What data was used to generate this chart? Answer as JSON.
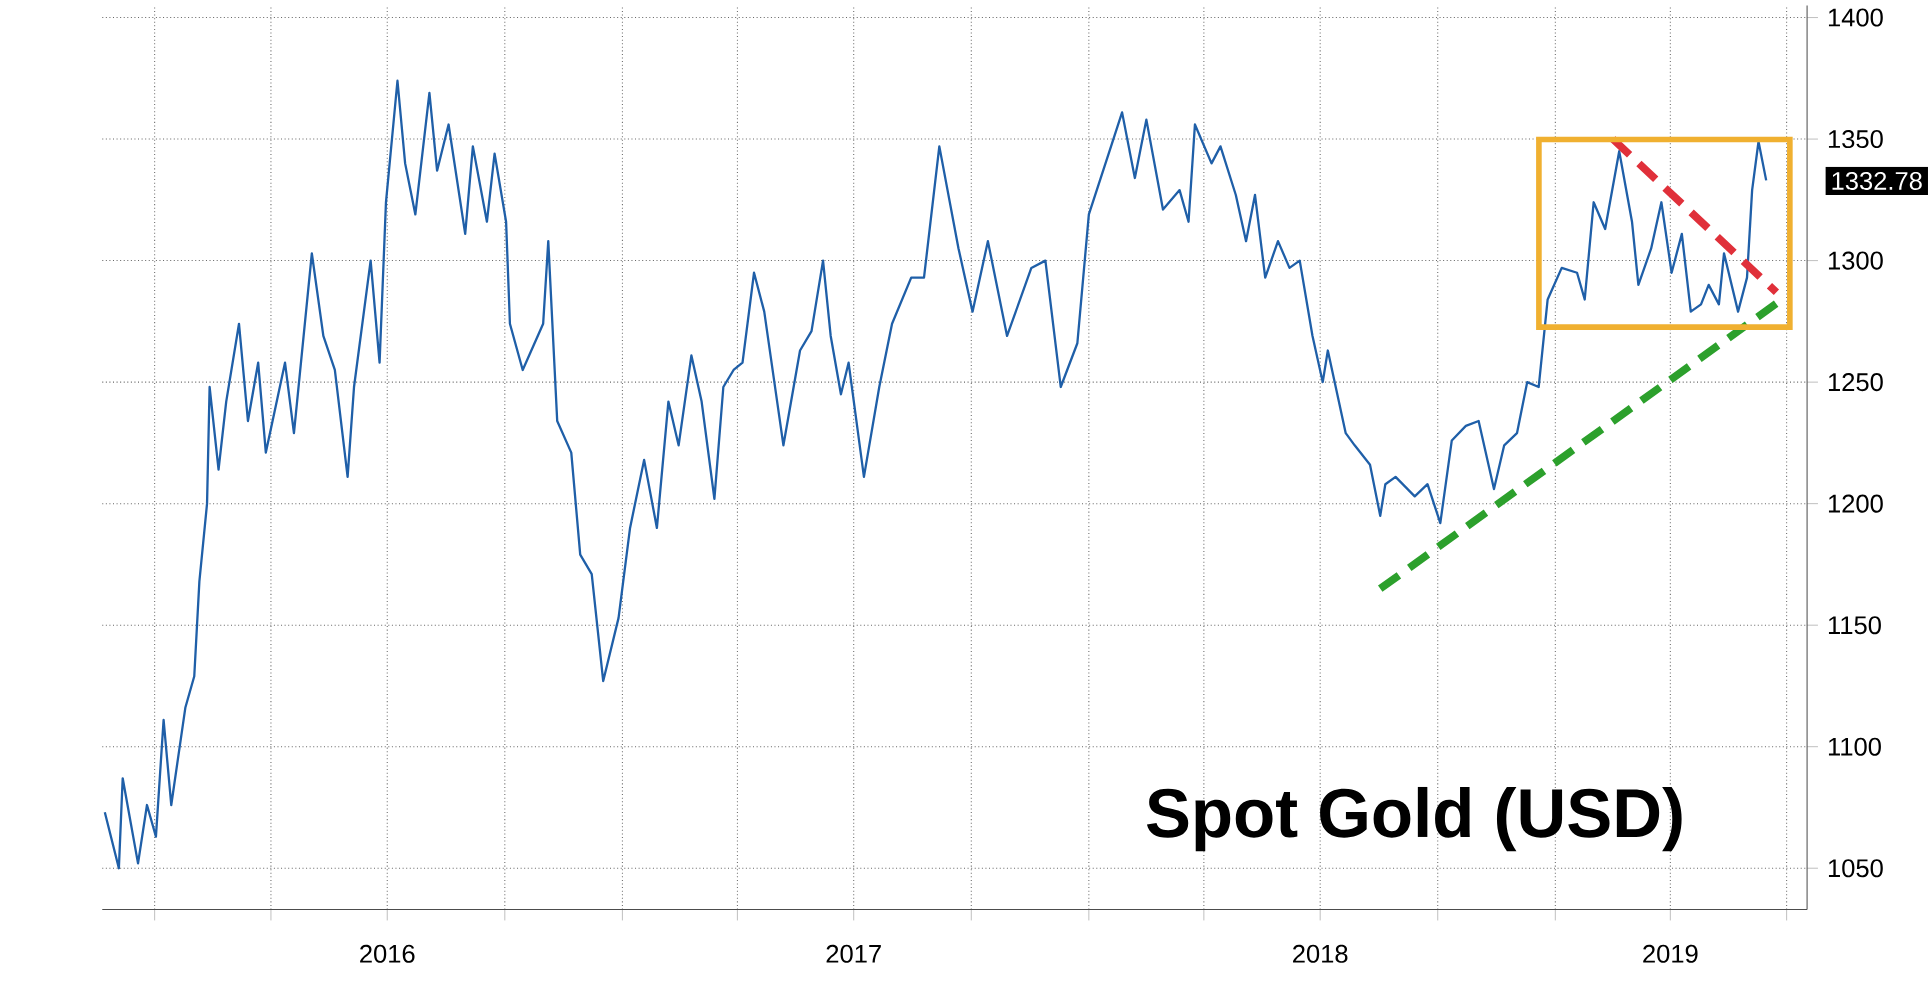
{
  "chart_data": {
    "type": "line",
    "title": "Spot Gold (USD)",
    "xlim": [
      "2015-11-21",
      "2019-07-17"
    ],
    "ylim": [
      1033,
      1405
    ],
    "xticks": [
      {
        "value": "2016-01-01",
        "label": null
      },
      {
        "value": "2016-04-01",
        "label": null
      },
      {
        "value": "2016-07-01",
        "label": "2016"
      },
      {
        "value": "2016-10-01",
        "label": null
      },
      {
        "value": "2017-01-01",
        "label": null
      },
      {
        "value": "2017-04-01",
        "label": null
      },
      {
        "value": "2017-07-01",
        "label": "2017"
      },
      {
        "value": "2017-10-01",
        "label": null
      },
      {
        "value": "2018-01-01",
        "label": null
      },
      {
        "value": "2018-04-01",
        "label": null
      },
      {
        "value": "2018-07-01",
        "label": "2018"
      },
      {
        "value": "2018-10-01",
        "label": null
      },
      {
        "value": "2019-01-01",
        "label": null
      },
      {
        "value": "2019-04-01",
        "label": "2019"
      },
      {
        "value": "2019-07-01",
        "label": null
      }
    ],
    "yticks": [
      1050,
      1100,
      1150,
      1200,
      1250,
      1300,
      1350,
      1400
    ],
    "grid": true,
    "marker": "none",
    "annotations": [
      {
        "text": "1332.78",
        "x": "2019-06-15",
        "y": 1332.78
      }
    ],
    "series": [
      {
        "color": "#1f5fa8",
        "line_style": "solid",
        "x": [
          "2015-11-23",
          "2015-12-04",
          "2015-12-07",
          "2015-12-19",
          "2015-12-26",
          "2016-01-02",
          "2016-01-08",
          "2016-01-14",
          "2016-01-25",
          "2016-02-01",
          "2016-02-05",
          "2016-02-11",
          "2016-02-13",
          "2016-02-20",
          "2016-02-26",
          "2016-03-07",
          "2016-03-14",
          "2016-03-22",
          "2016-03-28",
          "2016-04-12",
          "2016-04-19",
          "2016-05-03",
          "2016-05-12",
          "2016-05-21",
          "2016-05-31",
          "2016-06-05",
          "2016-06-18",
          "2016-06-25",
          "2016-06-30",
          "2016-07-09",
          "2016-07-15",
          "2016-07-23",
          "2016-08-03",
          "2016-08-09",
          "2016-08-18",
          "2016-08-31",
          "2016-09-06",
          "2016-09-17",
          "2016-09-23",
          "2016-10-02",
          "2016-10-05",
          "2016-10-15",
          "2016-10-31",
          "2016-11-04",
          "2016-11-11",
          "2016-11-22",
          "2016-11-29",
          "2016-12-08",
          "2016-12-17",
          "2016-12-29",
          "2017-01-07",
          "2017-01-18",
          "2017-01-28",
          "2017-02-06",
          "2017-02-14",
          "2017-02-24",
          "2017-03-04",
          "2017-03-14",
          "2017-03-21",
          "2017-03-29",
          "2017-04-05",
          "2017-04-14",
          "2017-04-22",
          "2017-05-07",
          "2017-05-20",
          "2017-05-29",
          "2017-06-07",
          "2017-06-13",
          "2017-06-21",
          "2017-06-27",
          "2017-07-09",
          "2017-07-21",
          "2017-07-31",
          "2017-08-15",
          "2017-08-25",
          "2017-09-06",
          "2017-09-21",
          "2017-10-02",
          "2017-10-14",
          "2017-10-29",
          "2017-11-17",
          "2017-11-28",
          "2017-12-10",
          "2017-12-23",
          "2018-01-01",
          "2018-01-19",
          "2018-01-27",
          "2018-02-06",
          "2018-02-15",
          "2018-02-28",
          "2018-03-13",
          "2018-03-20",
          "2018-03-25",
          "2018-04-07",
          "2018-04-14",
          "2018-04-26",
          "2018-05-04",
          "2018-05-11",
          "2018-05-19",
          "2018-05-29",
          "2018-06-07",
          "2018-06-15",
          "2018-06-25",
          "2018-07-03",
          "2018-07-07",
          "2018-07-21",
          "2018-07-28",
          "2018-08-09",
          "2018-08-17",
          "2018-08-21",
          "2018-08-29",
          "2018-09-13",
          "2018-09-23",
          "2018-10-03",
          "2018-10-12",
          "2018-10-23",
          "2018-11-02",
          "2018-11-14",
          "2018-11-22",
          "2018-12-02",
          "2018-12-10",
          "2018-12-19",
          "2018-12-26",
          "2019-01-06",
          "2019-01-18",
          "2019-01-24",
          "2019-01-31",
          "2019-02-09",
          "2019-02-20",
          "2019-03-02",
          "2019-03-07",
          "2019-03-17",
          "2019-03-25",
          "2019-04-02",
          "2019-04-10",
          "2019-04-17",
          "2019-04-25",
          "2019-05-01",
          "2019-05-09",
          "2019-05-13",
          "2019-05-24",
          "2019-05-31",
          "2019-06-04",
          "2019-06-09",
          "2019-06-15"
        ],
        "values": [
          1073,
          1050,
          1087,
          1052,
          1076,
          1063,
          1111,
          1076,
          1116,
          1129,
          1168,
          1200,
          1248,
          1214,
          1242,
          1274,
          1234,
          1258,
          1221,
          1258,
          1229,
          1303,
          1269,
          1255,
          1211,
          1248,
          1300,
          1258,
          1324,
          1374,
          1340,
          1319,
          1369,
          1337,
          1356,
          1311,
          1347,
          1316,
          1344,
          1316,
          1274,
          1255,
          1274,
          1308,
          1234,
          1221,
          1179,
          1171,
          1127,
          1153,
          1190,
          1218,
          1190,
          1242,
          1224,
          1261,
          1242,
          1202,
          1248,
          1255,
          1258,
          1295,
          1279,
          1224,
          1263,
          1271,
          1300,
          1269,
          1245,
          1258,
          1211,
          1248,
          1274,
          1293,
          1293,
          1347,
          1305,
          1279,
          1308,
          1269,
          1297,
          1300,
          1248,
          1266,
          1319,
          1348,
          1361,
          1334,
          1358,
          1321,
          1329,
          1316,
          1356,
          1340,
          1347,
          1327,
          1308,
          1327,
          1293,
          1308,
          1297,
          1300,
          1269,
          1250,
          1263,
          1229,
          1224,
          1216,
          1195,
          1208,
          1211,
          1203,
          1208,
          1192,
          1226,
          1232,
          1234,
          1206,
          1224,
          1229,
          1250,
          1248,
          1284,
          1297,
          1295,
          1284,
          1324,
          1313,
          1345,
          1316,
          1290,
          1305,
          1324,
          1295,
          1311,
          1279,
          1282,
          1290,
          1282,
          1303,
          1279,
          1293,
          1329,
          1349,
          1333
        ]
      },
      {
        "color": "#2ca02c",
        "line_style": "dashed",
        "x": [
          "2018-08-17",
          "2019-06-30"
        ],
        "values": [
          1165,
          1285
        ]
      },
      {
        "color": "#e0303a",
        "line_style": "dashed",
        "x": [
          "2019-02-15",
          "2019-06-23"
        ],
        "values": [
          1350,
          1287
        ]
      }
    ]
  }
}
